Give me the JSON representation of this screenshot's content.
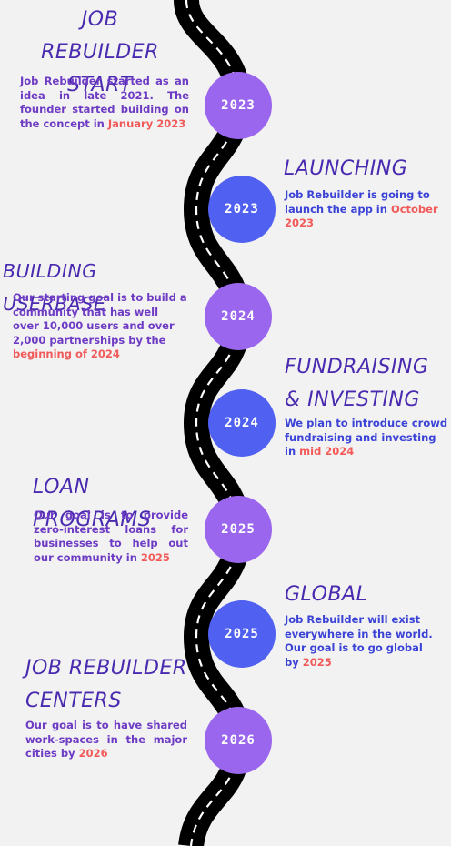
{
  "colors": {
    "background": "#f2f2f2",
    "title": "#4a2bb0",
    "text_purple": "#6e3cc4",
    "text_blue": "#3b43d6",
    "highlight": "#f25a5a",
    "badge_purple": "#9a66ee",
    "badge_blue": "#5060f0",
    "road": "#000000",
    "road_marking": "#ffffff"
  },
  "milestones": [
    {
      "year": "2023",
      "title": "JOB REBUILDER START",
      "text": "Job Rebuilder started as an idea in late 2021. The founder started building on the concept in ",
      "highlight": "January 2023"
    },
    {
      "year": "2023",
      "title": "LAUNCHING",
      "text": "Job Rebuilder is going to launch the app in ",
      "highlight": "October 2023"
    },
    {
      "year": "2024",
      "title": "BUILDING USERBASE",
      "text": "Our starting goal is to build a community that has well over 10,000 users and over 2,000 partnerships by the ",
      "highlight": "beginning of 2024"
    },
    {
      "year": "2024",
      "title": "FUNDRAISING & INVESTING",
      "text": "We plan to introduce crowd fundraising and investing in ",
      "highlight": "mid 2024"
    },
    {
      "year": "2025",
      "title": "LOAN PROGRAMS",
      "text": "Our goal is to provide zero-interest loans for businesses to help out our community in ",
      "highlight": "2025"
    },
    {
      "year": "2025",
      "title": "GLOBAL",
      "text": "Job Rebuilder will exist everywhere in the world. Our goal is to go global by ",
      "highlight": "2025"
    },
    {
      "year": "2026",
      "title": "JOB REBUILDER CENTERS",
      "text": "Our goal is to have shared work-spaces in the major cities by ",
      "highlight": "2026"
    }
  ]
}
